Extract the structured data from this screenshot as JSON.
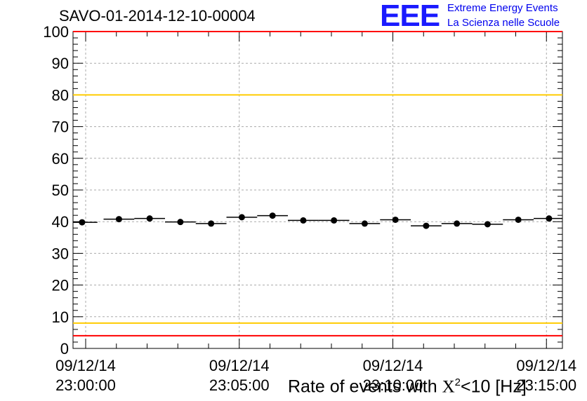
{
  "header": {
    "run_title": "SAVO-01-2014-12-10-00004",
    "logo_mark": "EEE",
    "logo_line1": "Extreme Energy Events",
    "logo_line2": "La Scienza nelle Scuole"
  },
  "colors": {
    "upper_limit": "#ff0000",
    "warning_high": "#ffcc00",
    "warning_low": "#ffcc00",
    "lower_limit": "#ff0000",
    "markers": "#000000",
    "grid": "#aaaaaa"
  },
  "chart_data": {
    "type": "scatter",
    "xlabel_prefix": "Rate of events with ",
    "xlabel_symbol": "X",
    "xlabel_sup": "2",
    "xlabel_suffix": "<10 [Hz]",
    "ylim": [
      0,
      100
    ],
    "yticks": [
      0,
      10,
      20,
      30,
      40,
      50,
      60,
      70,
      80,
      90,
      100
    ],
    "grid": true,
    "xticks": [
      {
        "date": "09/12/14",
        "time": "23:00:00"
      },
      {
        "date": "09/12/14",
        "time": "23:05:00"
      },
      {
        "date": "09/12/14",
        "time": "23:10:00"
      },
      {
        "date": "09/12/14",
        "time": "23:15:00"
      }
    ],
    "reference_lines": [
      {
        "name": "upper-limit",
        "y": 100
      },
      {
        "name": "warning-high",
        "y": 80
      },
      {
        "name": "warning-low",
        "y": 8
      },
      {
        "name": "lower-limit",
        "y": 4
      }
    ],
    "bin_width_min": 1,
    "points": [
      {
        "t": "22:59:53",
        "y": 39.8
      },
      {
        "t": "23:01:05",
        "y": 40.8
      },
      {
        "t": "23:02:05",
        "y": 41.0
      },
      {
        "t": "23:03:05",
        "y": 39.9
      },
      {
        "t": "23:04:05",
        "y": 39.4
      },
      {
        "t": "23:05:05",
        "y": 41.4
      },
      {
        "t": "23:06:05",
        "y": 41.9
      },
      {
        "t": "23:07:05",
        "y": 40.4
      },
      {
        "t": "23:08:05",
        "y": 40.4
      },
      {
        "t": "23:09:05",
        "y": 39.4
      },
      {
        "t": "23:10:05",
        "y": 40.6
      },
      {
        "t": "23:11:05",
        "y": 38.7
      },
      {
        "t": "23:12:05",
        "y": 39.4
      },
      {
        "t": "23:13:05",
        "y": 39.2
      },
      {
        "t": "23:14:05",
        "y": 40.6
      },
      {
        "t": "23:15:05",
        "y": 41.0
      }
    ]
  }
}
